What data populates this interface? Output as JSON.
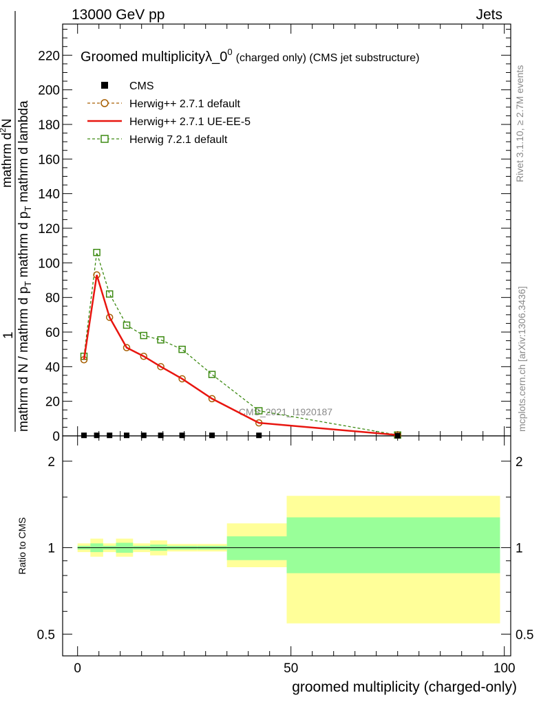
{
  "header": {
    "left": "13000 GeV pp",
    "right": "Jets"
  },
  "side": {
    "rivet": "Rivet 3.1.10, ≥ 2.7M events",
    "mcplots": "mcplots.cern.ch [arXiv:1306.3436]"
  },
  "chart_data": {
    "type": "line",
    "title": "Groomed multiplicityλ_0",
    "title_sup": "0",
    "title_suffix": "(charged only) (CMS jet substructure)",
    "watermark": "CMS_2021_I1920187",
    "xlabel": "groomed multiplicity (charged-only)",
    "ylabel_main": {
      "numerator_1": "1",
      "denominator_1": "mathrm d N / mathrm d p_T mathrm d p_T mathrm d lambda",
      "numerator_2": "mathrm d²N",
      "denominator_2": "mathrm d p_T mathrm d lambda",
      "fraction_1_num": "1",
      "fraction_1_den": "mathrm d N / mathrm d p",
      "sub_T": "T",
      "fraction_2_num": "mathrm d",
      "sup_2": "2",
      "fraction_2_num_end": "N",
      "fraction_2_den": "mathrm d p",
      "fraction_2_den_end": "mathrm d lambda"
    },
    "ylabel_ratio": "Ratio to CMS",
    "xlim": [
      -3.5,
      101.5
    ],
    "ylim_main": [
      0,
      238
    ],
    "y_ticks_main": [
      "0",
      "20",
      "40",
      "60",
      "80",
      "100",
      "120",
      "140",
      "160",
      "180",
      "200",
      "220"
    ],
    "y_tick_values_main": [
      0,
      20,
      40,
      60,
      80,
      100,
      120,
      140,
      160,
      180,
      200,
      220
    ],
    "x_ticks": [
      "0",
      "50",
      "100"
    ],
    "x_tick_values": [
      0,
      50,
      100
    ],
    "ratio_ylim": [
      0.42,
      2.45
    ],
    "ratio_ticks": [
      "0.5",
      "1",
      "2"
    ],
    "ratio_tick_values": [
      0.5,
      1,
      2
    ],
    "legend": {
      "position": "top-left",
      "entries": [
        "CMS",
        "Herwig++ 2.7.1 default",
        "Herwig++ 2.7.1 UE-EE-5",
        "Herwig 7.2.1 default"
      ]
    },
    "series": [
      {
        "name": "CMS",
        "color": "#000000",
        "marker": "square-filled",
        "x": [
          1.5,
          4.5,
          7.5,
          11.5,
          15.5,
          19.5,
          24.5,
          31.5,
          42.5,
          75
        ],
        "values": [
          0.3,
          0.3,
          0.3,
          0.3,
          0.3,
          0.3,
          0.3,
          0.3,
          0.3,
          0.1
        ]
      },
      {
        "name": "Herwig++ 2.7.1 default",
        "color": "#a65d00",
        "marker": "circle-open",
        "dash": true,
        "x": [
          1.5,
          4.5,
          7.5,
          11.5,
          15.5,
          19.5,
          24.5,
          31.5,
          42.5,
          75
        ],
        "values": [
          44,
          93,
          68.5,
          51,
          46,
          40,
          33,
          21.5,
          7.5,
          0.5
        ]
      },
      {
        "name": "Herwig++ 2.7.1 UE-EE-5",
        "color": "#e8150f",
        "marker": "none",
        "dash": false,
        "x": [
          1.5,
          4.5,
          7.5,
          11.5,
          15.5,
          19.5,
          24.5,
          31.5,
          42.5,
          75
        ],
        "values": [
          44,
          93,
          68.5,
          51,
          46,
          40,
          33,
          21.5,
          7.5,
          0.5
        ]
      },
      {
        "name": "Herwig 7.2.1 default",
        "color": "#3c8a12",
        "marker": "square-open",
        "dash": true,
        "x": [
          1.5,
          4.5,
          7.5,
          11.5,
          15.5,
          19.5,
          24.5,
          31.5,
          42.5,
          75
        ],
        "values": [
          46,
          106,
          82,
          64,
          58,
          55.5,
          50,
          35.5,
          14.5,
          0.5
        ]
      }
    ],
    "ratio_bands": {
      "bins": [
        [
          0,
          3
        ],
        [
          3,
          6
        ],
        [
          6,
          9
        ],
        [
          9,
          13
        ],
        [
          13,
          17
        ],
        [
          17,
          21
        ],
        [
          21,
          28
        ],
        [
          28,
          35
        ],
        [
          35,
          49
        ],
        [
          49,
          99
        ]
      ],
      "stat_low": [
        0.985,
        0.965,
        0.985,
        0.96,
        0.985,
        0.975,
        0.985,
        0.985,
        0.905,
        0.815
      ],
      "stat_high": [
        1.015,
        1.035,
        1.015,
        1.04,
        1.015,
        1.025,
        1.015,
        1.015,
        1.095,
        1.275
      ],
      "total_low": [
        0.965,
        0.93,
        0.965,
        0.93,
        0.965,
        0.94,
        0.97,
        0.97,
        0.855,
        0.545
      ],
      "total_high": [
        1.035,
        1.075,
        1.035,
        1.075,
        1.035,
        1.06,
        1.03,
        1.03,
        1.215,
        1.515
      ],
      "stat_color": "#99ff99",
      "total_color": "#ffff99"
    }
  }
}
